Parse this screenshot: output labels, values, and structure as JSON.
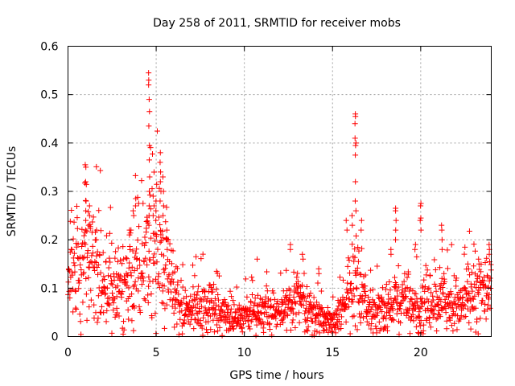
{
  "chart_data": {
    "type": "scatter",
    "title": "Day 258 of 2011, SRMTID for receiver mobs",
    "xlabel": "GPS time / hours",
    "ylabel": "SRMTID / TECUs",
    "xlim": [
      0,
      24
    ],
    "ylim": [
      0,
      0.6
    ],
    "xticks": [
      0,
      5,
      10,
      15,
      20
    ],
    "xtick_labels": [
      "0",
      "5",
      "10",
      "15",
      "20"
    ],
    "yticks": [
      0,
      0.1,
      0.2,
      0.3,
      0.4,
      0.5,
      0.6
    ],
    "ytick_labels": [
      "0",
      "0.1",
      "0.2",
      "0.3",
      "0.4",
      "0.5",
      "0.6"
    ],
    "grid": true,
    "marker": "+",
    "color": "#ff0000",
    "series": [
      {
        "name": "SRMTID",
        "trend": [
          [
            0.0,
            0.11
          ],
          [
            0.5,
            0.12
          ],
          [
            1.0,
            0.15
          ],
          [
            1.5,
            0.14
          ],
          [
            2.0,
            0.11
          ],
          [
            2.5,
            0.1
          ],
          [
            3.0,
            0.11
          ],
          [
            3.5,
            0.12
          ],
          [
            4.0,
            0.13
          ],
          [
            4.5,
            0.15
          ],
          [
            5.0,
            0.16
          ],
          [
            5.5,
            0.14
          ],
          [
            6.0,
            0.08
          ],
          [
            6.5,
            0.06
          ],
          [
            7.0,
            0.055
          ],
          [
            7.5,
            0.06
          ],
          [
            8.0,
            0.065
          ],
          [
            8.5,
            0.055
          ],
          [
            9.0,
            0.045
          ],
          [
            9.5,
            0.04
          ],
          [
            10.0,
            0.045
          ],
          [
            10.5,
            0.05
          ],
          [
            11.0,
            0.05
          ],
          [
            11.5,
            0.045
          ],
          [
            12.0,
            0.05
          ],
          [
            12.5,
            0.06
          ],
          [
            13.0,
            0.065
          ],
          [
            13.5,
            0.06
          ],
          [
            14.0,
            0.045
          ],
          [
            14.5,
            0.035
          ],
          [
            15.0,
            0.03
          ],
          [
            15.5,
            0.05
          ],
          [
            16.0,
            0.1
          ],
          [
            16.5,
            0.11
          ],
          [
            17.0,
            0.06
          ],
          [
            17.5,
            0.05
          ],
          [
            18.0,
            0.05
          ],
          [
            18.5,
            0.075
          ],
          [
            19.0,
            0.07
          ],
          [
            19.5,
            0.06
          ],
          [
            20.0,
            0.07
          ],
          [
            20.5,
            0.06
          ],
          [
            21.0,
            0.065
          ],
          [
            21.5,
            0.065
          ],
          [
            22.0,
            0.06
          ],
          [
            22.5,
            0.07
          ],
          [
            23.0,
            0.08
          ],
          [
            23.5,
            0.085
          ],
          [
            24.0,
            0.09
          ]
        ],
        "spikes": [
          {
            "x": 1.0,
            "values": [
              0.355,
              0.35,
              0.32,
              0.28,
              0.26,
              0.24,
              0.22
            ]
          },
          {
            "x": 1.2,
            "values": [
              0.27,
              0.25,
              0.23
            ]
          },
          {
            "x": 1.6,
            "values": [
              0.22,
              0.2
            ]
          },
          {
            "x": 3.5,
            "values": [
              0.22,
              0.21
            ]
          },
          {
            "x": 3.7,
            "values": [
              0.26,
              0.25
            ]
          },
          {
            "x": 3.85,
            "values": [
              0.285,
              0.27
            ]
          },
          {
            "x": 4.6,
            "values": [
              0.545,
              0.53,
              0.52,
              0.49,
              0.465,
              0.435,
              0.395,
              0.365,
              0.33,
              0.3,
              0.27,
              0.25,
              0.23
            ]
          },
          {
            "x": 4.85,
            "values": [
              0.29,
              0.27,
              0.25
            ]
          },
          {
            "x": 5.0,
            "values": [
              0.28,
              0.26,
              0.24
            ]
          },
          {
            "x": 5.25,
            "values": [
              0.38,
              0.36,
              0.34,
              0.32,
              0.3,
              0.28
            ]
          },
          {
            "x": 5.4,
            "values": [
              0.33,
              0.3,
              0.27,
              0.25
            ]
          },
          {
            "x": 5.6,
            "values": [
              0.22,
              0.2,
              0.18
            ]
          },
          {
            "x": 10.7,
            "values": [
              0.16
            ]
          },
          {
            "x": 12.6,
            "values": [
              0.19,
              0.18
            ]
          },
          {
            "x": 13.3,
            "values": [
              0.17,
              0.16
            ]
          },
          {
            "x": 14.2,
            "values": [
              0.14,
              0.13
            ]
          },
          {
            "x": 15.8,
            "values": [
              0.24,
              0.22
            ]
          },
          {
            "x": 16.1,
            "values": [
              0.25,
              0.23
            ]
          },
          {
            "x": 16.3,
            "values": [
              0.46,
              0.455,
              0.44,
              0.41,
              0.4,
              0.395,
              0.375,
              0.32,
              0.28,
              0.26
            ]
          },
          {
            "x": 16.65,
            "values": [
              0.24,
              0.22
            ]
          },
          {
            "x": 18.6,
            "values": [
              0.265,
              0.26,
              0.24,
              0.22,
              0.2
            ]
          },
          {
            "x": 18.3,
            "values": [
              0.18,
              0.17
            ]
          },
          {
            "x": 20.0,
            "values": [
              0.275,
              0.27,
              0.245,
              0.24,
              0.22
            ]
          },
          {
            "x": 19.7,
            "values": [
              0.19,
              0.18
            ]
          },
          {
            "x": 21.2,
            "values": [
              0.23,
              0.22,
              0.2,
              0.18
            ]
          },
          {
            "x": 22.7,
            "values": [
              0.14,
              0.15
            ]
          },
          {
            "x": 23.3,
            "values": [
              0.16,
              0.15
            ]
          },
          {
            "x": 23.9,
            "values": [
              0.19,
              0.18,
              0.17
            ]
          }
        ]
      }
    ]
  }
}
